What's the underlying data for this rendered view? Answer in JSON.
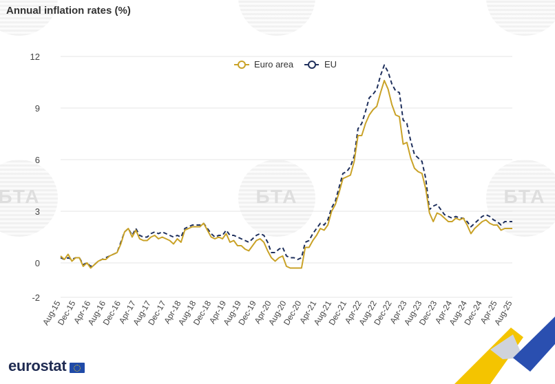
{
  "header": {
    "title": "Annual inflation rates (%)"
  },
  "logo": {
    "text": "eurostat"
  },
  "watermark": {
    "text": "БТА"
  },
  "colors": {
    "euro_area": "#c9a227",
    "eu": "#1e2f5c",
    "grid": "#e6e6e6"
  },
  "chart_data": {
    "type": "line",
    "title": "Annual inflation rates (%)",
    "xlabel": "",
    "ylabel": "",
    "ylim": [
      -2,
      12
    ],
    "yticks": [
      -2,
      0,
      3,
      6,
      9,
      12
    ],
    "grid": true,
    "legend": "top-center",
    "x": [
      "Aug-15",
      "Sep-15",
      "Oct-15",
      "Nov-15",
      "Dec-15",
      "Jan-16",
      "Feb-16",
      "Mar-16",
      "Apr-16",
      "May-16",
      "Jun-16",
      "Jul-16",
      "Aug-16",
      "Sep-16",
      "Oct-16",
      "Nov-16",
      "Dec-16",
      "Jan-17",
      "Feb-17",
      "Mar-17",
      "Apr-17",
      "May-17",
      "Jun-17",
      "Jul-17",
      "Aug-17",
      "Sep-17",
      "Oct-17",
      "Nov-17",
      "Dec-17",
      "Jan-18",
      "Feb-18",
      "Mar-18",
      "Apr-18",
      "May-18",
      "Jun-18",
      "Jul-18",
      "Aug-18",
      "Sep-18",
      "Oct-18",
      "Nov-18",
      "Dec-18",
      "Jan-19",
      "Feb-19",
      "Mar-19",
      "Apr-19",
      "May-19",
      "Jun-19",
      "Jul-19",
      "Aug-19",
      "Sep-19",
      "Oct-19",
      "Nov-19",
      "Dec-19",
      "Jan-20",
      "Feb-20",
      "Mar-20",
      "Apr-20",
      "May-20",
      "Jun-20",
      "Jul-20",
      "Aug-20",
      "Sep-20",
      "Oct-20",
      "Nov-20",
      "Dec-20",
      "Jan-21",
      "Feb-21",
      "Mar-21",
      "Apr-21",
      "May-21",
      "Jun-21",
      "Jul-21",
      "Aug-21",
      "Sep-21",
      "Oct-21",
      "Nov-21",
      "Dec-21",
      "Jan-22",
      "Feb-22",
      "Mar-22",
      "Apr-22",
      "May-22",
      "Jun-22",
      "Jul-22",
      "Aug-22",
      "Sep-22",
      "Oct-22",
      "Nov-22",
      "Dec-22",
      "Jan-23",
      "Feb-23",
      "Mar-23",
      "Apr-23",
      "May-23",
      "Jun-23",
      "Jul-23",
      "Aug-23",
      "Sep-23",
      "Oct-23",
      "Nov-23",
      "Dec-23",
      "Jan-24",
      "Feb-24",
      "Mar-24",
      "Apr-24",
      "May-24",
      "Jun-24",
      "Jul-24",
      "Aug-24",
      "Sep-24",
      "Oct-24",
      "Nov-24",
      "Dec-24",
      "Jan-25",
      "Feb-25",
      "Mar-25",
      "Apr-25",
      "May-25",
      "Jun-25",
      "Jul-25",
      "Aug-25"
    ],
    "tick_labels": [
      "Aug-15",
      "Dec-15",
      "Apr-16",
      "Aug-16",
      "Dec-16",
      "Apr-17",
      "Aug-17",
      "Dec-17",
      "Apr-18",
      "Aug-18",
      "Dec-18",
      "Apr-19",
      "Aug-19",
      "Dec-19",
      "Apr-20",
      "Aug-20",
      "Dec-20",
      "Apr-21",
      "Aug-21",
      "Dec-21",
      "Apr-22",
      "Aug-22",
      "Dec-22",
      "Apr-23",
      "Aug-23",
      "Dec-23",
      "Apr-24",
      "Aug-24",
      "Dec-24",
      "Apr-25",
      "Aug-25"
    ],
    "series": [
      {
        "name": "Euro area",
        "style": "solid",
        "values": [
          0.4,
          0.2,
          0.5,
          0.1,
          0.3,
          0.3,
          -0.2,
          0.0,
          -0.3,
          -0.1,
          0.1,
          0.2,
          0.2,
          0.4,
          0.5,
          0.6,
          1.1,
          1.8,
          2.0,
          1.5,
          1.9,
          1.4,
          1.3,
          1.3,
          1.5,
          1.6,
          1.4,
          1.5,
          1.4,
          1.3,
          1.1,
          1.4,
          1.2,
          1.9,
          2.0,
          2.1,
          2.1,
          2.1,
          2.3,
          1.9,
          1.5,
          1.4,
          1.5,
          1.4,
          1.7,
          1.2,
          1.3,
          1.0,
          1.0,
          0.8,
          0.7,
          1.0,
          1.3,
          1.4,
          1.2,
          0.7,
          0.3,
          0.1,
          0.3,
          0.4,
          -0.2,
          -0.3,
          -0.3,
          -0.3,
          -0.3,
          0.9,
          0.9,
          1.3,
          1.6,
          2.0,
          1.9,
          2.2,
          3.0,
          3.4,
          4.1,
          4.9,
          5.0,
          5.1,
          5.9,
          7.4,
          7.4,
          8.1,
          8.6,
          8.9,
          9.1,
          9.9,
          10.6,
          10.1,
          9.2,
          8.6,
          8.5,
          6.9,
          7.0,
          6.1,
          5.5,
          5.3,
          5.2,
          4.3,
          2.9,
          2.4,
          2.9,
          2.8,
          2.6,
          2.4,
          2.4,
          2.6,
          2.5,
          2.6,
          2.2,
          1.7,
          2.0,
          2.2,
          2.4,
          2.5,
          2.3,
          2.2,
          2.2,
          1.9,
          2.0,
          2.0,
          2.0
        ]
      },
      {
        "name": "EU",
        "style": "dashed",
        "values": [
          0.3,
          0.2,
          0.3,
          0.2,
          0.3,
          0.3,
          -0.1,
          0.0,
          -0.2,
          -0.1,
          0.1,
          0.2,
          0.3,
          0.4,
          0.5,
          0.6,
          1.2,
          1.8,
          2.0,
          1.6,
          2.0,
          1.6,
          1.5,
          1.5,
          1.7,
          1.8,
          1.7,
          1.8,
          1.7,
          1.6,
          1.5,
          1.6,
          1.5,
          2.0,
          2.1,
          2.2,
          2.2,
          2.2,
          2.3,
          2.0,
          1.7,
          1.5,
          1.6,
          1.6,
          1.9,
          1.6,
          1.6,
          1.5,
          1.4,
          1.3,
          1.2,
          1.4,
          1.6,
          1.7,
          1.6,
          1.2,
          0.6,
          0.6,
          0.8,
          0.9,
          0.4,
          0.3,
          0.3,
          0.2,
          0.3,
          1.2,
          1.3,
          1.7,
          2.0,
          2.3,
          2.2,
          2.5,
          3.2,
          3.6,
          4.4,
          5.2,
          5.3,
          5.6,
          6.2,
          7.8,
          8.1,
          8.8,
          9.6,
          9.8,
          10.1,
          10.9,
          11.5,
          11.1,
          10.4,
          10.0,
          9.9,
          8.3,
          8.1,
          7.1,
          6.3,
          6.1,
          5.9,
          4.9,
          3.1,
          3.3,
          3.4,
          3.1,
          2.8,
          2.7,
          2.6,
          2.7,
          2.6,
          2.6,
          2.4,
          2.1,
          2.3,
          2.5,
          2.7,
          2.8,
          2.7,
          2.5,
          2.4,
          2.2,
          2.4,
          2.4,
          2.4
        ]
      }
    ]
  }
}
